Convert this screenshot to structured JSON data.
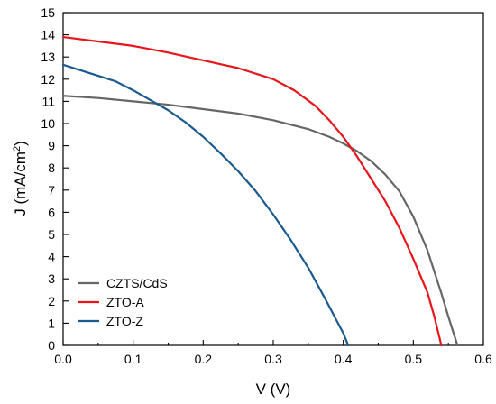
{
  "chart_data": {
    "type": "line",
    "title": "",
    "xlabel": "V (V)",
    "ylabel_main": "J (mA/cm",
    "ylabel_sup": "2",
    "ylabel_close": ")",
    "xlim": [
      0.0,
      0.6
    ],
    "ylim": [
      0,
      15
    ],
    "x_ticks": [
      0.0,
      0.1,
      0.2,
      0.3,
      0.4,
      0.5,
      0.6
    ],
    "x_tick_labels": [
      "0.0",
      "0.1",
      "0.2",
      "0.3",
      "0.4",
      "0.5",
      "0.6"
    ],
    "y_ticks": [
      0,
      1,
      2,
      3,
      4,
      5,
      6,
      7,
      8,
      9,
      10,
      11,
      12,
      13,
      14,
      15
    ],
    "y_tick_labels": [
      "0",
      "1",
      "2",
      "3",
      "4",
      "5",
      "6",
      "7",
      "8",
      "9",
      "10",
      "11",
      "12",
      "13",
      "14",
      "15"
    ],
    "grid": false,
    "legend_position": "bottom-left",
    "series": [
      {
        "name": "CZTS/CdS",
        "color": "#666666",
        "x": [
          0.0,
          0.05,
          0.1,
          0.15,
          0.2,
          0.25,
          0.3,
          0.35,
          0.38,
          0.4,
          0.42,
          0.44,
          0.46,
          0.48,
          0.5,
          0.52,
          0.54,
          0.55,
          0.56,
          0.563
        ],
        "y": [
          11.25,
          11.15,
          11.0,
          10.85,
          10.65,
          10.45,
          10.15,
          9.75,
          9.4,
          9.1,
          8.75,
          8.3,
          7.7,
          6.95,
          5.8,
          4.3,
          2.35,
          1.3,
          0.3,
          0.0
        ]
      },
      {
        "name": "ZTO-A",
        "color": "#e8151b",
        "x": [
          0.0,
          0.05,
          0.1,
          0.15,
          0.2,
          0.25,
          0.3,
          0.33,
          0.36,
          0.38,
          0.4,
          0.42,
          0.44,
          0.46,
          0.48,
          0.5,
          0.52,
          0.53,
          0.54
        ],
        "y": [
          13.9,
          13.7,
          13.5,
          13.2,
          12.85,
          12.5,
          12.0,
          11.5,
          10.8,
          10.15,
          9.4,
          8.5,
          7.5,
          6.5,
          5.3,
          3.9,
          2.4,
          1.3,
          0.0
        ]
      },
      {
        "name": "ZTO-Z",
        "color": "#1a5a8e",
        "x": [
          0.0,
          0.025,
          0.05,
          0.075,
          0.1,
          0.125,
          0.15,
          0.175,
          0.2,
          0.225,
          0.25,
          0.275,
          0.3,
          0.325,
          0.35,
          0.375,
          0.39,
          0.4,
          0.407
        ],
        "y": [
          12.65,
          12.4,
          12.15,
          11.9,
          11.5,
          11.05,
          10.6,
          10.05,
          9.4,
          8.65,
          7.85,
          6.95,
          5.9,
          4.75,
          3.5,
          2.05,
          1.15,
          0.55,
          0.0
        ]
      }
    ]
  }
}
